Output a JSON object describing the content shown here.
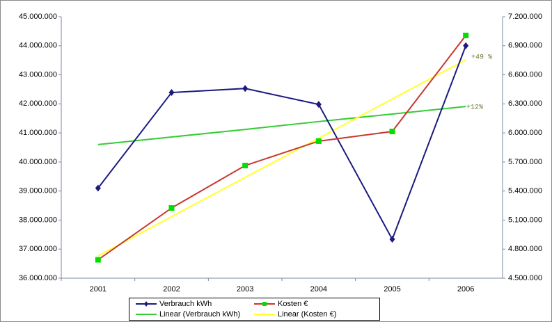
{
  "chart_data": {
    "type": "line",
    "categories": [
      "2001",
      "2002",
      "2003",
      "2004",
      "2005",
      "2006"
    ],
    "series": [
      {
        "name": "Verbrauch kWh",
        "color": "#1a1a80",
        "marker": "diamond",
        "marker_color": "#1a1a80",
        "values": [
          39100000,
          42390000,
          42530000,
          41980000,
          37340000,
          44000000
        ]
      },
      {
        "name": "Kosten €",
        "color": "#c8372d",
        "marker": "square",
        "marker_color": "#00e000",
        "axis": "y2",
        "values": [
          4690000,
          5225000,
          5663000,
          5915000,
          6015000,
          7006000
        ]
      },
      {
        "name": "Linear (Verbrauch kWh)",
        "color": "#33cc33",
        "values": [
          40600000,
          40860000,
          41120000,
          41390000,
          41650000,
          41910000
        ]
      },
      {
        "name": "Linear (Kosten €)",
        "color": "#ffff33",
        "axis": "y2",
        "values": [
          4730000,
          5135000,
          5540000,
          5945000,
          6350000,
          6755000
        ]
      }
    ],
    "ylim": [
      36000000,
      45000000
    ],
    "yticks": [
      {
        "value": 36000000,
        "label": "36.000.000"
      },
      {
        "value": 37000000,
        "label": "37.000.000"
      },
      {
        "value": 38000000,
        "label": "38.000.000"
      },
      {
        "value": 39000000,
        "label": "39.000.000"
      },
      {
        "value": 40000000,
        "label": "40.000.000"
      },
      {
        "value": 41000000,
        "label": "41.000.000"
      },
      {
        "value": 42000000,
        "label": "42.000.000"
      },
      {
        "value": 43000000,
        "label": "43.000.000"
      },
      {
        "value": 44000000,
        "label": "44.000.000"
      },
      {
        "value": 45000000,
        "label": "45.000.000"
      }
    ],
    "y2lim": [
      4500000,
      7200000
    ],
    "y2ticks": [
      {
        "value": 4500000,
        "label": "4.500.000"
      },
      {
        "value": 4800000,
        "label": "4.800.000"
      },
      {
        "value": 5100000,
        "label": "5.100.000"
      },
      {
        "value": 5400000,
        "label": "5.400.000"
      },
      {
        "value": 5700000,
        "label": "5.700.000"
      },
      {
        "value": 6000000,
        "label": "6.000.000"
      },
      {
        "value": 6300000,
        "label": "6.300.000"
      },
      {
        "value": 6600000,
        "label": "6.600.000"
      },
      {
        "value": 6900000,
        "label": "6.900.000"
      },
      {
        "value": 7200000,
        "label": "7.200.000"
      }
    ],
    "annotations": [
      "+49 %",
      "+12%"
    ],
    "legend": "bottom"
  }
}
